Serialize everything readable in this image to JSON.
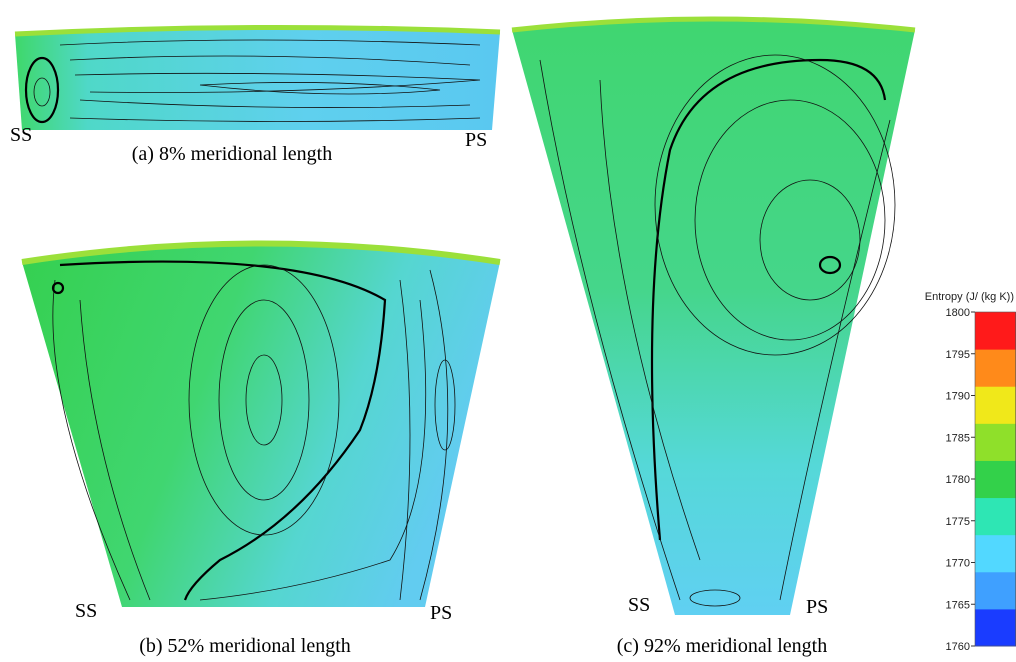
{
  "panels": [
    {
      "caption": "(a) 8% meridional length",
      "left": "SS",
      "right": "PS"
    },
    {
      "caption": "(b) 52% meridional length",
      "left": "SS",
      "right": "PS"
    },
    {
      "caption": "(c) 92% meridional length",
      "left": "SS",
      "right": "PS"
    }
  ],
  "colorbar": {
    "title": "Entropy (J/ (kg K))",
    "ticks": [
      1760,
      1765,
      1770,
      1775,
      1780,
      1785,
      1790,
      1795,
      1800
    ],
    "colors": [
      "#1a3cff",
      "#3fa0ff",
      "#52d8ff",
      "#2ee6b4",
      "#33d14a",
      "#8fe02a",
      "#f0e81a",
      "#ff8a1a",
      "#ff1a1a"
    ]
  }
}
